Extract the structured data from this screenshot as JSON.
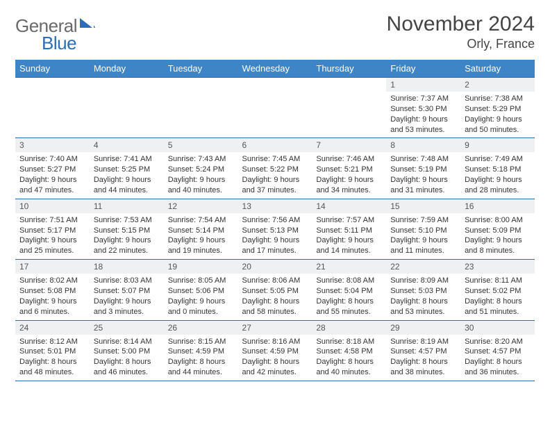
{
  "logo": {
    "word1": "General",
    "word2": "Blue"
  },
  "title": "November 2024",
  "location": "Orly, France",
  "weekday_headers": [
    "Sunday",
    "Monday",
    "Tuesday",
    "Wednesday",
    "Thursday",
    "Friday",
    "Saturday"
  ],
  "colors": {
    "header_bg": "#3d85c6",
    "border": "#2a6db8",
    "daynum_bg": "#eef0f2",
    "logo_gray": "#6a6a6a",
    "logo_blue": "#2a6db8"
  },
  "weeks": [
    [
      {
        "n": "",
        "empty": true
      },
      {
        "n": "",
        "empty": true
      },
      {
        "n": "",
        "empty": true
      },
      {
        "n": "",
        "empty": true
      },
      {
        "n": "",
        "empty": true
      },
      {
        "n": "1",
        "sunrise": "7:37 AM",
        "sunset": "5:30 PM",
        "daylight": "9 hours and 53 minutes."
      },
      {
        "n": "2",
        "sunrise": "7:38 AM",
        "sunset": "5:29 PM",
        "daylight": "9 hours and 50 minutes."
      }
    ],
    [
      {
        "n": "3",
        "sunrise": "7:40 AM",
        "sunset": "5:27 PM",
        "daylight": "9 hours and 47 minutes."
      },
      {
        "n": "4",
        "sunrise": "7:41 AM",
        "sunset": "5:25 PM",
        "daylight": "9 hours and 44 minutes."
      },
      {
        "n": "5",
        "sunrise": "7:43 AM",
        "sunset": "5:24 PM",
        "daylight": "9 hours and 40 minutes."
      },
      {
        "n": "6",
        "sunrise": "7:45 AM",
        "sunset": "5:22 PM",
        "daylight": "9 hours and 37 minutes."
      },
      {
        "n": "7",
        "sunrise": "7:46 AM",
        "sunset": "5:21 PM",
        "daylight": "9 hours and 34 minutes."
      },
      {
        "n": "8",
        "sunrise": "7:48 AM",
        "sunset": "5:19 PM",
        "daylight": "9 hours and 31 minutes."
      },
      {
        "n": "9",
        "sunrise": "7:49 AM",
        "sunset": "5:18 PM",
        "daylight": "9 hours and 28 minutes."
      }
    ],
    [
      {
        "n": "10",
        "sunrise": "7:51 AM",
        "sunset": "5:17 PM",
        "daylight": "9 hours and 25 minutes."
      },
      {
        "n": "11",
        "sunrise": "7:53 AM",
        "sunset": "5:15 PM",
        "daylight": "9 hours and 22 minutes."
      },
      {
        "n": "12",
        "sunrise": "7:54 AM",
        "sunset": "5:14 PM",
        "daylight": "9 hours and 19 minutes."
      },
      {
        "n": "13",
        "sunrise": "7:56 AM",
        "sunset": "5:13 PM",
        "daylight": "9 hours and 17 minutes."
      },
      {
        "n": "14",
        "sunrise": "7:57 AM",
        "sunset": "5:11 PM",
        "daylight": "9 hours and 14 minutes."
      },
      {
        "n": "15",
        "sunrise": "7:59 AM",
        "sunset": "5:10 PM",
        "daylight": "9 hours and 11 minutes."
      },
      {
        "n": "16",
        "sunrise": "8:00 AM",
        "sunset": "5:09 PM",
        "daylight": "9 hours and 8 minutes."
      }
    ],
    [
      {
        "n": "17",
        "sunrise": "8:02 AM",
        "sunset": "5:08 PM",
        "daylight": "9 hours and 6 minutes."
      },
      {
        "n": "18",
        "sunrise": "8:03 AM",
        "sunset": "5:07 PM",
        "daylight": "9 hours and 3 minutes."
      },
      {
        "n": "19",
        "sunrise": "8:05 AM",
        "sunset": "5:06 PM",
        "daylight": "9 hours and 0 minutes."
      },
      {
        "n": "20",
        "sunrise": "8:06 AM",
        "sunset": "5:05 PM",
        "daylight": "8 hours and 58 minutes."
      },
      {
        "n": "21",
        "sunrise": "8:08 AM",
        "sunset": "5:04 PM",
        "daylight": "8 hours and 55 minutes."
      },
      {
        "n": "22",
        "sunrise": "8:09 AM",
        "sunset": "5:03 PM",
        "daylight": "8 hours and 53 minutes."
      },
      {
        "n": "23",
        "sunrise": "8:11 AM",
        "sunset": "5:02 PM",
        "daylight": "8 hours and 51 minutes."
      }
    ],
    [
      {
        "n": "24",
        "sunrise": "8:12 AM",
        "sunset": "5:01 PM",
        "daylight": "8 hours and 48 minutes."
      },
      {
        "n": "25",
        "sunrise": "8:14 AM",
        "sunset": "5:00 PM",
        "daylight": "8 hours and 46 minutes."
      },
      {
        "n": "26",
        "sunrise": "8:15 AM",
        "sunset": "4:59 PM",
        "daylight": "8 hours and 44 minutes."
      },
      {
        "n": "27",
        "sunrise": "8:16 AM",
        "sunset": "4:59 PM",
        "daylight": "8 hours and 42 minutes."
      },
      {
        "n": "28",
        "sunrise": "8:18 AM",
        "sunset": "4:58 PM",
        "daylight": "8 hours and 40 minutes."
      },
      {
        "n": "29",
        "sunrise": "8:19 AM",
        "sunset": "4:57 PM",
        "daylight": "8 hours and 38 minutes."
      },
      {
        "n": "30",
        "sunrise": "8:20 AM",
        "sunset": "4:57 PM",
        "daylight": "8 hours and 36 minutes."
      }
    ]
  ],
  "labels": {
    "sunrise": "Sunrise: ",
    "sunset": "Sunset: ",
    "daylight": "Daylight: "
  }
}
